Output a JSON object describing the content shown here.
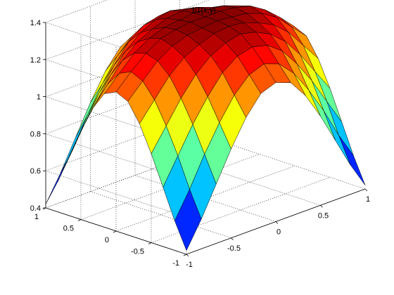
{
  "chart_data": {
    "type": "surface",
    "title": "b1(x,y)",
    "xlabel": "",
    "ylabel": "",
    "zlabel": "",
    "xlim": [
      -1,
      1
    ],
    "ylim": [
      -1,
      1
    ],
    "zlim": [
      0.4,
      1.4
    ],
    "x_ticks": [
      "-1",
      "-0.5",
      "0",
      "0.5",
      "1"
    ],
    "y_ticks": [
      "-1",
      "-0.5",
      "0",
      "0.5",
      "1"
    ],
    "z_ticks": [
      "0.4",
      "0.6",
      "0.8",
      "1",
      "1.2",
      "1.4"
    ],
    "grid": true,
    "colormap": "jet",
    "x": [
      -1,
      -0.8333,
      -0.6667,
      -0.5,
      -0.3333,
      -0.1667,
      0,
      0.1667,
      0.3333,
      0.5,
      0.6667,
      0.8333,
      1
    ],
    "y": [
      -1,
      -0.8333,
      -0.6667,
      -0.5,
      -0.3333,
      -0.1667,
      0,
      0.1667,
      0.3333,
      0.5,
      0.6667,
      0.8333,
      1
    ],
    "z": [
      [
        0.42,
        0.56,
        0.72,
        0.88,
        1.02,
        1.12,
        1.15,
        1.12,
        1.02,
        0.88,
        0.72,
        0.56,
        0.42
      ],
      [
        0.56,
        0.7,
        0.86,
        1.0,
        1.12,
        1.2,
        1.23,
        1.2,
        1.12,
        1.0,
        0.86,
        0.7,
        0.56
      ],
      [
        0.72,
        0.86,
        1.0,
        1.12,
        1.22,
        1.28,
        1.3,
        1.28,
        1.22,
        1.12,
        1.0,
        0.86,
        0.72
      ],
      [
        0.88,
        1.0,
        1.12,
        1.22,
        1.29,
        1.33,
        1.35,
        1.33,
        1.29,
        1.22,
        1.12,
        1.0,
        0.88
      ],
      [
        1.02,
        1.12,
        1.22,
        1.29,
        1.33,
        1.36,
        1.37,
        1.36,
        1.33,
        1.29,
        1.22,
        1.12,
        1.02
      ],
      [
        1.12,
        1.2,
        1.28,
        1.33,
        1.36,
        1.37,
        1.38,
        1.37,
        1.36,
        1.33,
        1.28,
        1.2,
        1.12
      ],
      [
        1.15,
        1.23,
        1.3,
        1.35,
        1.37,
        1.38,
        1.38,
        1.38,
        1.37,
        1.35,
        1.3,
        1.23,
        1.15
      ],
      [
        1.12,
        1.2,
        1.28,
        1.33,
        1.36,
        1.37,
        1.38,
        1.37,
        1.36,
        1.33,
        1.28,
        1.2,
        1.12
      ],
      [
        1.02,
        1.12,
        1.22,
        1.29,
        1.33,
        1.36,
        1.37,
        1.36,
        1.33,
        1.29,
        1.22,
        1.12,
        1.02
      ],
      [
        0.88,
        1.0,
        1.12,
        1.22,
        1.29,
        1.33,
        1.35,
        1.33,
        1.29,
        1.22,
        1.12,
        1.0,
        0.88
      ],
      [
        0.72,
        0.86,
        1.0,
        1.12,
        1.22,
        1.28,
        1.3,
        1.28,
        1.22,
        1.12,
        1.0,
        0.86,
        0.72
      ],
      [
        0.56,
        0.7,
        0.86,
        1.0,
        1.12,
        1.2,
        1.23,
        1.2,
        1.12,
        1.0,
        0.86,
        0.7,
        0.56
      ],
      [
        0.42,
        0.56,
        0.72,
        0.88,
        1.02,
        1.12,
        1.15,
        1.12,
        1.02,
        0.88,
        0.72,
        0.56,
        0.42
      ]
    ]
  }
}
